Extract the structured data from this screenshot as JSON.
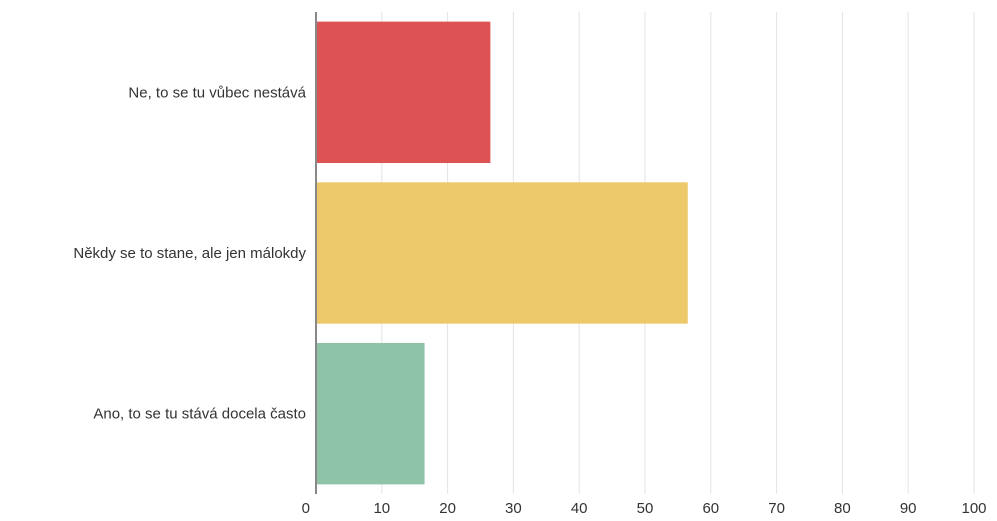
{
  "chart_data": {
    "type": "bar",
    "orientation": "horizontal",
    "categories": [
      "Ne, to se tu vůbec nestává",
      "Někdy se to stane, ale jen málokdy",
      "Ano, to se tu stává docela často"
    ],
    "values": [
      26.5,
      56.5,
      16.5
    ],
    "colors": [
      "#dd5354",
      "#eec96c",
      "#8ec3a8"
    ],
    "xlim": [
      0,
      100
    ],
    "x_ticks": [
      "0",
      "10",
      "20",
      "30",
      "40",
      "50",
      "60",
      "70",
      "80",
      "90",
      "100"
    ],
    "grid": "vertical",
    "legend": "none",
    "title": "",
    "xlabel": "",
    "ylabel": ""
  }
}
